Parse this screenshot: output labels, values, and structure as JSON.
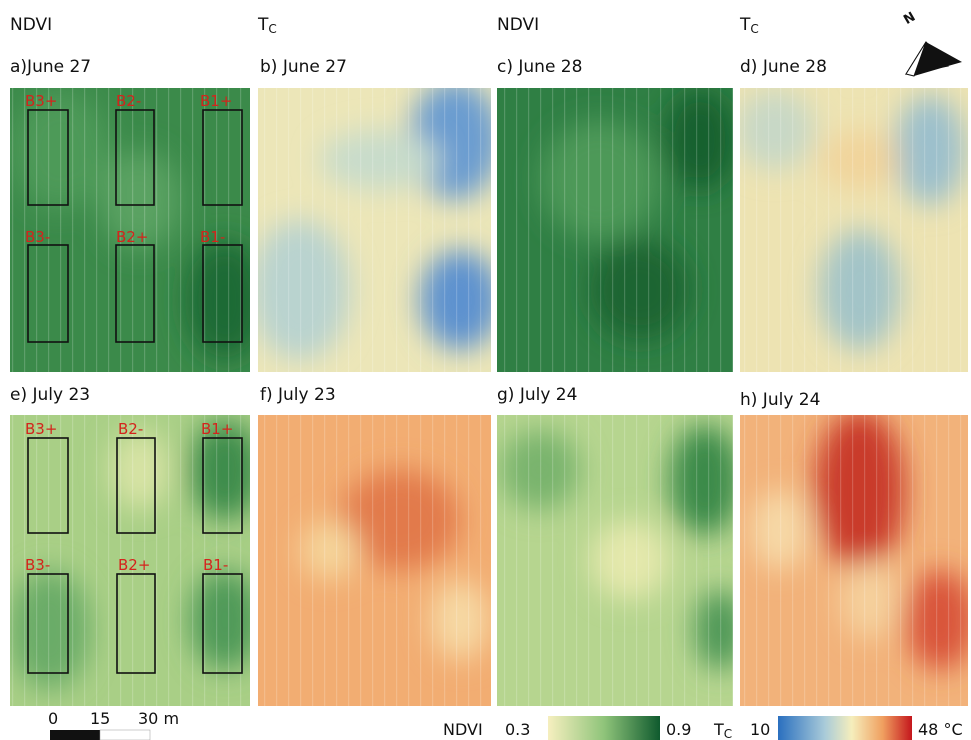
{
  "column_headers": [
    "NDVI",
    {
      "main": "T",
      "sub": "C"
    },
    "NDVI",
    {
      "main": "T",
      "sub": "C"
    }
  ],
  "north": "N",
  "panels": [
    {
      "label": "a)June 27",
      "blocks": [
        "B3+",
        "B2-",
        "B1+",
        "B3-",
        "B2+",
        "B1-"
      ]
    },
    {
      "label": "b) June 27"
    },
    {
      "label": "c) June 28"
    },
    {
      "label": "d) June 28"
    },
    {
      "label": "e)  July 23",
      "blocks": [
        "B3+",
        "B2-",
        "B1+",
        "B3-",
        "B2+",
        "B1-"
      ]
    },
    {
      "label": "f) July 23"
    },
    {
      "label": "g) July 24"
    },
    {
      "label": "h) July 24"
    }
  ],
  "scale_bar": [
    "0",
    "15",
    "30 m"
  ],
  "legend": {
    "ndvi": {
      "title": "NDVI",
      "min": "0.3",
      "max": "0.9"
    },
    "tc": {
      "title": {
        "main": "T",
        "sub": "C"
      },
      "min": "10",
      "max": "48 °C"
    }
  }
}
